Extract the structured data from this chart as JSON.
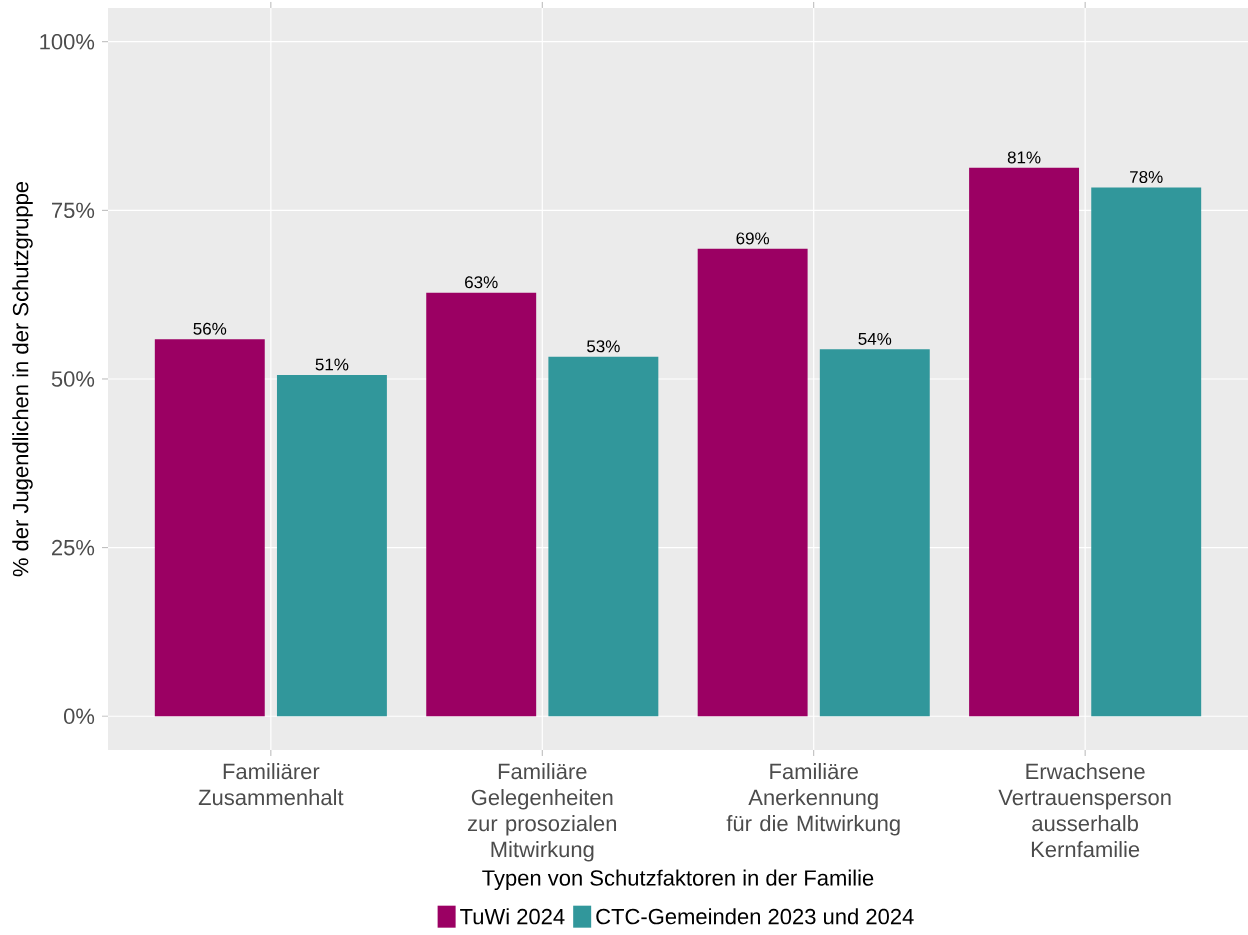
{
  "chart_data": {
    "type": "bar",
    "xlabel": "Typen von Schutzfaktoren in der Familie",
    "ylabel": "% der Jugendlichen in der Schutzgruppe",
    "categories": [
      "Familiärer Zusammenhalt",
      "Familiäre Gelegenheiten zur prosozialen Mitwirkung",
      "Familiäre Anerkennung für die Mitwirkung",
      "Erwachsene Vertrauensperson ausserhalb Kernfamilie"
    ],
    "series": [
      {
        "name": "TuWi 2024",
        "color": "#9b0063",
        "values": [
          55.9,
          62.8,
          69.3,
          81.3
        ],
        "value_labels": [
          "56%",
          "63%",
          "69%",
          "81%"
        ]
      },
      {
        "name": "CTC-Gemeinden 2023 und 2024",
        "color": "#31979b",
        "values": [
          50.6,
          53.3,
          54.4,
          78.4
        ],
        "value_labels": [
          "51%",
          "53%",
          "54%",
          "78%"
        ]
      }
    ],
    "ylim": [
      -5,
      105
    ],
    "yticks": [
      {
        "value": 0,
        "label": "0%"
      },
      {
        "value": 25,
        "label": "25%"
      },
      {
        "value": 50,
        "label": "50%"
      },
      {
        "value": 75,
        "label": "75%"
      },
      {
        "value": 100,
        "label": "100%"
      }
    ],
    "grid": true,
    "legend": "bottom"
  }
}
